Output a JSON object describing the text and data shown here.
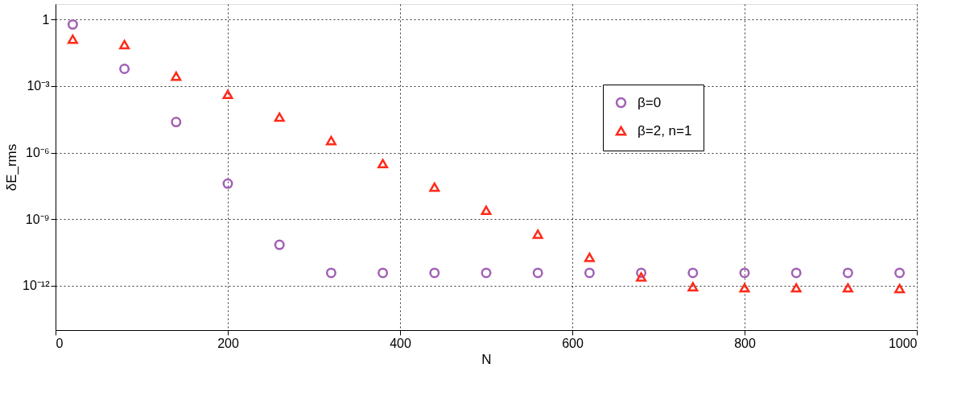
{
  "chart_data": {
    "type": "scatter",
    "xlabel": "N",
    "ylabel": "δE_rms",
    "x": [
      20,
      80,
      140,
      200,
      260,
      320,
      380,
      440,
      500,
      560,
      620,
      680,
      740,
      800,
      860,
      920,
      980
    ],
    "series": [
      {
        "name": "β=0",
        "color": "#a15fb5",
        "marker": "circle",
        "values": [
          0.6,
          0.006,
          2.4e-05,
          4e-08,
          7e-11,
          3.8e-12,
          3.8e-12,
          3.8e-12,
          3.8e-12,
          3.8e-12,
          3.8e-12,
          3.8e-12,
          3.8e-12,
          3.8e-12,
          3.8e-12,
          3.8e-12,
          3.8e-12
        ]
      },
      {
        "name": "β=2, n=1",
        "color": "#ff2a1a",
        "marker": "triangle",
        "values": [
          0.13,
          0.074,
          0.0028,
          0.00042,
          4e-05,
          3.5e-06,
          3.2e-07,
          2.8e-08,
          2.5e-09,
          2.1e-10,
          1.9e-11,
          2.5e-12,
          9e-13,
          8e-13,
          8e-13,
          8e-13,
          7.5e-13
        ]
      }
    ],
    "log": "y",
    "xlim": [
      0,
      1000
    ],
    "xticks": [
      0,
      200,
      400,
      600,
      800,
      1000
    ],
    "ylim": [
      1e-14,
      5
    ],
    "yticks": [
      {
        "value": 1,
        "label": "1"
      },
      {
        "value": 0.001,
        "label": "10⁻³"
      },
      {
        "value": 1e-06,
        "label": "10⁻⁶"
      },
      {
        "value": 1e-09,
        "label": "10⁻⁹"
      },
      {
        "value": 1e-12,
        "label": "10⁻¹²"
      }
    ],
    "grid": true,
    "legend": "right"
  }
}
